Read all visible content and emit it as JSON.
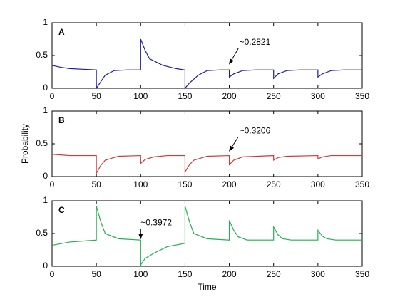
{
  "chart_data": [
    {
      "type": "line",
      "panel_label": "A",
      "color": "#1c1ca8",
      "x": [
        0,
        10,
        20,
        35,
        50,
        50,
        55,
        60,
        70,
        85,
        100,
        100,
        105,
        110,
        125,
        140,
        150,
        150,
        155,
        165,
        175,
        190,
        200,
        200,
        205,
        215,
        230,
        250,
        250,
        255,
        265,
        280,
        300,
        300,
        305,
        315,
        330,
        350
      ],
      "values": [
        0.35,
        0.32,
        0.3,
        0.29,
        0.28,
        0.0,
        0.1,
        0.2,
        0.27,
        0.28,
        0.28,
        0.75,
        0.58,
        0.45,
        0.35,
        0.3,
        0.28,
        0.0,
        0.08,
        0.2,
        0.27,
        0.28,
        0.28,
        0.17,
        0.22,
        0.27,
        0.28,
        0.28,
        0.15,
        0.22,
        0.27,
        0.28,
        0.28,
        0.17,
        0.22,
        0.27,
        0.28,
        0.28
      ],
      "xlim": [
        0,
        350
      ],
      "xticks": [
        0,
        50,
        100,
        150,
        200,
        250,
        300,
        350
      ],
      "ylim": [
        0,
        1
      ],
      "yticks": [
        0,
        0.5,
        1
      ],
      "annotation": {
        "text": "~0.2821",
        "x": 200,
        "y": 0.37
      }
    },
    {
      "type": "line",
      "panel_label": "B",
      "color": "#cc3a3a",
      "ylabel": "Probability",
      "x": [
        0,
        10,
        20,
        35,
        50,
        50,
        55,
        60,
        75,
        100,
        100,
        105,
        115,
        130,
        150,
        150,
        155,
        160,
        175,
        200,
        200,
        205,
        215,
        250,
        250,
        255,
        265,
        300,
        300,
        305,
        315,
        350
      ],
      "values": [
        0.34,
        0.33,
        0.32,
        0.32,
        0.32,
        0.05,
        0.17,
        0.25,
        0.31,
        0.32,
        0.2,
        0.26,
        0.3,
        0.32,
        0.32,
        0.07,
        0.18,
        0.25,
        0.31,
        0.32,
        0.18,
        0.25,
        0.3,
        0.32,
        0.25,
        0.29,
        0.31,
        0.32,
        0.27,
        0.3,
        0.32,
        0.32
      ],
      "xlim": [
        0,
        350
      ],
      "xticks": [
        0,
        50,
        100,
        150,
        200,
        250,
        300,
        350
      ],
      "ylim": [
        0,
        1
      ],
      "yticks": [
        0,
        0.5,
        1
      ],
      "annotation": {
        "text": "~0.3206",
        "x": 200,
        "y": 0.39
      }
    },
    {
      "type": "line",
      "panel_label": "C",
      "color": "#22b050",
      "xlabel": "Time",
      "x": [
        0,
        20,
        40,
        50,
        50,
        55,
        60,
        75,
        100,
        100,
        105,
        115,
        130,
        150,
        150,
        155,
        160,
        175,
        200,
        200,
        205,
        210,
        220,
        250,
        250,
        255,
        260,
        270,
        300,
        300,
        305,
        310,
        320,
        350
      ],
      "values": [
        0.32,
        0.37,
        0.39,
        0.4,
        0.92,
        0.68,
        0.5,
        0.42,
        0.4,
        0.02,
        0.12,
        0.2,
        0.3,
        0.35,
        0.92,
        0.68,
        0.5,
        0.42,
        0.4,
        0.7,
        0.55,
        0.45,
        0.4,
        0.4,
        0.6,
        0.48,
        0.42,
        0.4,
        0.4,
        0.55,
        0.46,
        0.42,
        0.4,
        0.4
      ],
      "xlim": [
        0,
        350
      ],
      "xticks": [
        0,
        50,
        100,
        150,
        200,
        250,
        300,
        350
      ],
      "ylim": [
        0,
        1
      ],
      "yticks": [
        0,
        0.5,
        1
      ],
      "annotation": {
        "text": "~0.3972",
        "x": 100,
        "y": 0.42
      }
    }
  ]
}
